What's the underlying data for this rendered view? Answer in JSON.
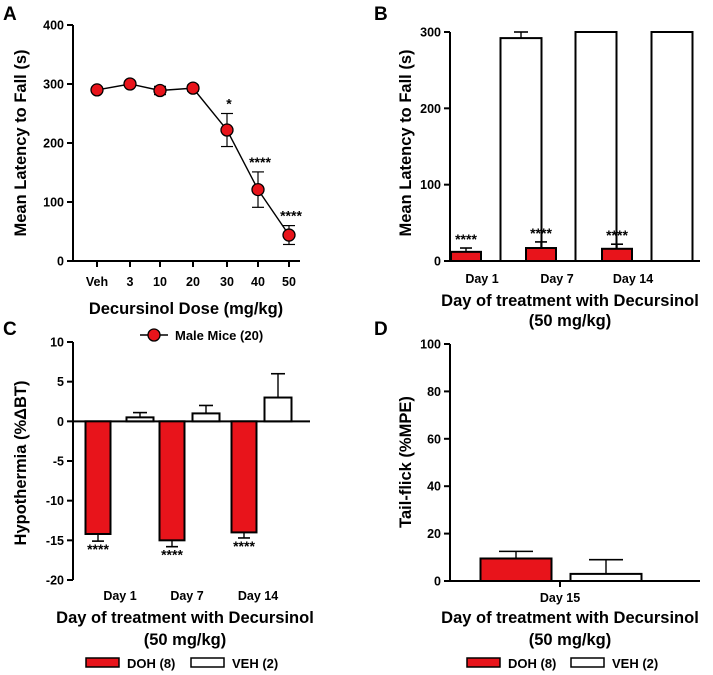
{
  "chart_data": [
    {
      "panel": "A",
      "type": "line",
      "categories": [
        "Veh",
        "3",
        "10",
        "20",
        "30",
        "40",
        "50"
      ],
      "series": [
        {
          "name": "Male Mice (20)",
          "values": [
            290,
            300,
            289,
            293,
            222,
            121,
            44
          ],
          "errors": [
            4,
            3,
            7,
            5,
            28,
            30,
            16
          ],
          "significance": [
            "",
            "",
            "",
            "",
            "*",
            "****",
            "****"
          ],
          "color": "#e8141b"
        }
      ],
      "xlabel": "Decursinol Dose (mg/kg)",
      "ylabel": "Mean Latency to Fall (s)",
      "ylim": [
        0,
        400
      ],
      "yticks": [
        0,
        100,
        200,
        300,
        400
      ]
    },
    {
      "panel": "B",
      "type": "bar",
      "categories": [
        "Day 1",
        "Day 7",
        "Day 14"
      ],
      "series": [
        {
          "name": "DOH",
          "values": [
            12,
            17,
            16
          ],
          "errors": [
            5,
            8,
            6
          ],
          "significance": [
            "****",
            "****",
            "****"
          ],
          "color": "#e8141b"
        },
        {
          "name": "VEH",
          "values": [
            292,
            300,
            300
          ],
          "errors": [
            8,
            0,
            0
          ],
          "significance": [
            "",
            "",
            ""
          ],
          "color": "#ffffff"
        }
      ],
      "xlabel_lines": [
        "Day of treatment with Decursinol",
        "(50 mg/kg)"
      ],
      "ylabel": "Mean Latency to Fall (s)",
      "ylim": [
        0,
        300
      ],
      "yticks": [
        0,
        100,
        200,
        300
      ]
    },
    {
      "panel": "C",
      "type": "bar",
      "categories": [
        "Day 1",
        "Day 7",
        "Day 14"
      ],
      "series": [
        {
          "name": "DOH (8)",
          "values": [
            -14.2,
            -15,
            -14
          ],
          "errors": [
            0.9,
            0.8,
            0.7
          ],
          "significance": [
            "****",
            "****",
            "****"
          ],
          "color": "#e8141b"
        },
        {
          "name": "VEH (2)",
          "values": [
            0.5,
            1,
            3
          ],
          "errors": [
            0.6,
            1,
            3
          ],
          "significance": [
            "",
            "",
            ""
          ],
          "color": "#ffffff"
        }
      ],
      "xlabel_lines": [
        "Day of treatment with Decursinol",
        "(50 mg/kg)"
      ],
      "ylabel": "Hypothermia (%ΔBT)",
      "ylim": [
        -20,
        10
      ],
      "yticks": [
        -20,
        -15,
        -10,
        -5,
        0,
        5,
        10
      ]
    },
    {
      "panel": "D",
      "type": "bar",
      "categories": [
        "Day 15"
      ],
      "series": [
        {
          "name": "DOH (8)",
          "values": [
            9.5
          ],
          "errors": [
            3
          ],
          "significance": [
            ""
          ],
          "color": "#e8141b"
        },
        {
          "name": "VEH (2)",
          "values": [
            3
          ],
          "errors": [
            6
          ],
          "significance": [
            ""
          ],
          "color": "#ffffff"
        }
      ],
      "xlabel_lines": [
        "Day of treatment with Decursinol",
        "(50 mg/kg)"
      ],
      "ylabel": "Tail-flick (%MPE)",
      "ylim": [
        0,
        100
      ],
      "yticks": [
        0,
        20,
        40,
        60,
        80,
        100
      ]
    }
  ]
}
